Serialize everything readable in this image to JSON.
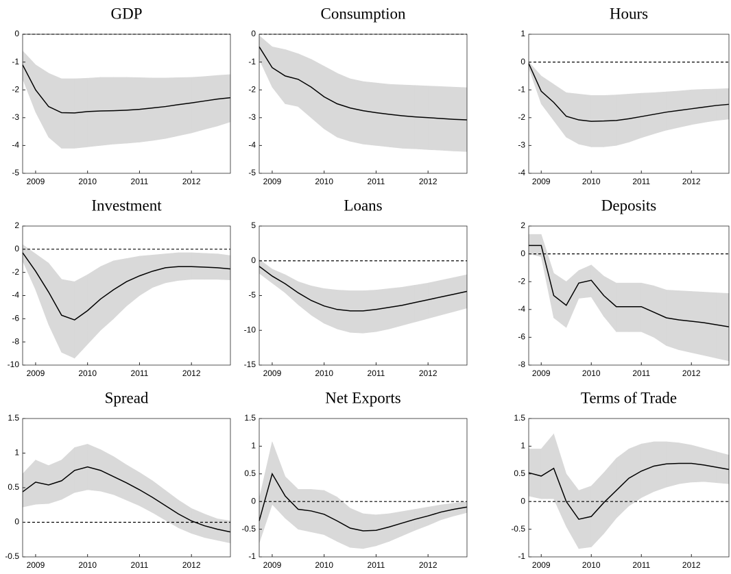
{
  "chart_data": [
    {
      "type": "line",
      "title": "GDP",
      "x": [
        2008.75,
        2009,
        2009.25,
        2009.5,
        2009.75,
        2010,
        2010.25,
        2010.5,
        2010.75,
        2011,
        2011.25,
        2011.5,
        2011.75,
        2012,
        2012.25,
        2012.5,
        2012.75
      ],
      "xlim": [
        2008.75,
        2012.75
      ],
      "xticks": [
        2009,
        2010,
        2011,
        2012
      ],
      "ylim": [
        -5,
        0
      ],
      "yticks": [
        -5,
        -4,
        -3,
        -2,
        -1,
        0
      ],
      "reference_line": 0,
      "color": "#000000",
      "band_color": "#d9d9d9",
      "values": [
        -1.1,
        -2.0,
        -2.6,
        -2.82,
        -2.83,
        -2.78,
        -2.76,
        -2.75,
        -2.73,
        -2.7,
        -2.65,
        -2.6,
        -2.53,
        -2.47,
        -2.4,
        -2.33,
        -2.28
      ],
      "upper": [
        -0.6,
        -1.1,
        -1.4,
        -1.6,
        -1.6,
        -1.58,
        -1.55,
        -1.55,
        -1.55,
        -1.56,
        -1.57,
        -1.57,
        -1.56,
        -1.55,
        -1.52,
        -1.48,
        -1.45
      ],
      "lower": [
        -1.6,
        -2.8,
        -3.7,
        -4.1,
        -4.1,
        -4.05,
        -4.0,
        -3.95,
        -3.92,
        -3.88,
        -3.82,
        -3.75,
        -3.65,
        -3.55,
        -3.42,
        -3.3,
        -3.15
      ]
    },
    {
      "type": "line",
      "title": "Consumption",
      "x": [
        2008.75,
        2009,
        2009.25,
        2009.5,
        2009.75,
        2010,
        2010.25,
        2010.5,
        2010.75,
        2011,
        2011.25,
        2011.5,
        2011.75,
        2012,
        2012.25,
        2012.5,
        2012.75
      ],
      "xlim": [
        2008.75,
        2012.75
      ],
      "xticks": [
        2009,
        2010,
        2011,
        2012
      ],
      "ylim": [
        -5,
        0
      ],
      "yticks": [
        -5,
        -4,
        -3,
        -2,
        -1,
        0
      ],
      "reference_line": 0,
      "color": "#000000",
      "band_color": "#d9d9d9",
      "values": [
        -0.45,
        -1.2,
        -1.5,
        -1.62,
        -1.9,
        -2.25,
        -2.5,
        -2.65,
        -2.75,
        -2.82,
        -2.88,
        -2.93,
        -2.97,
        -3.0,
        -3.03,
        -3.06,
        -3.08
      ],
      "upper": [
        -0.05,
        -0.45,
        -0.55,
        -0.7,
        -0.9,
        -1.15,
        -1.4,
        -1.6,
        -1.7,
        -1.75,
        -1.8,
        -1.82,
        -1.84,
        -1.86,
        -1.88,
        -1.9,
        -1.92
      ],
      "lower": [
        -0.9,
        -1.9,
        -2.5,
        -2.6,
        -3.0,
        -3.4,
        -3.7,
        -3.85,
        -3.95,
        -4.0,
        -4.05,
        -4.1,
        -4.12,
        -4.15,
        -4.17,
        -4.2,
        -4.22
      ]
    },
    {
      "type": "line",
      "title": "Hours",
      "x": [
        2008.75,
        2009,
        2009.25,
        2009.5,
        2009.75,
        2010,
        2010.25,
        2010.5,
        2010.75,
        2011,
        2011.25,
        2011.5,
        2011.75,
        2012,
        2012.25,
        2012.5,
        2012.75
      ],
      "xlim": [
        2008.75,
        2012.75
      ],
      "xticks": [
        2009,
        2010,
        2011,
        2012
      ],
      "ylim": [
        -4,
        1
      ],
      "yticks": [
        -4,
        -3,
        -2,
        -1,
        0,
        1
      ],
      "reference_line": 0,
      "color": "#000000",
      "band_color": "#d9d9d9",
      "values": [
        -0.05,
        -1.05,
        -1.45,
        -1.95,
        -2.08,
        -2.13,
        -2.12,
        -2.1,
        -2.04,
        -1.96,
        -1.88,
        -1.8,
        -1.74,
        -1.68,
        -1.62,
        -1.56,
        -1.52
      ],
      "upper": [
        0,
        -0.5,
        -0.8,
        -1.1,
        -1.15,
        -1.2,
        -1.2,
        -1.18,
        -1.15,
        -1.12,
        -1.1,
        -1.07,
        -1.04,
        -1.0,
        -0.98,
        -0.97,
        -0.95
      ],
      "lower": [
        -0.2,
        -1.5,
        -2.1,
        -2.7,
        -2.95,
        -3.05,
        -3.05,
        -3.0,
        -2.88,
        -2.72,
        -2.58,
        -2.45,
        -2.35,
        -2.25,
        -2.17,
        -2.1,
        -2.05
      ]
    },
    {
      "type": "line",
      "title": "Investment",
      "x": [
        2008.75,
        2009,
        2009.25,
        2009.5,
        2009.75,
        2010,
        2010.25,
        2010.5,
        2010.75,
        2011,
        2011.25,
        2011.5,
        2011.75,
        2012,
        2012.25,
        2012.5,
        2012.75
      ],
      "xlim": [
        2008.75,
        2012.75
      ],
      "xticks": [
        2009,
        2010,
        2011,
        2012
      ],
      "ylim": [
        -10,
        2
      ],
      "yticks": [
        -10,
        -8,
        -6,
        -4,
        -2,
        0,
        2
      ],
      "reference_line": 0,
      "color": "#000000",
      "band_color": "#d9d9d9",
      "values": [
        -0.3,
        -1.9,
        -3.7,
        -5.7,
        -6.1,
        -5.3,
        -4.3,
        -3.5,
        -2.8,
        -2.3,
        -1.9,
        -1.6,
        -1.5,
        -1.5,
        -1.55,
        -1.6,
        -1.7
      ],
      "upper": [
        0.4,
        -0.4,
        -1.2,
        -2.6,
        -2.8,
        -2.2,
        -1.5,
        -1.0,
        -0.8,
        -0.6,
        -0.5,
        -0.4,
        -0.3,
        -0.3,
        -0.35,
        -0.4,
        -0.55
      ],
      "lower": [
        -1.0,
        -3.5,
        -6.5,
        -8.9,
        -9.4,
        -8.2,
        -7.0,
        -6.0,
        -4.9,
        -4.0,
        -3.3,
        -2.9,
        -2.7,
        -2.6,
        -2.6,
        -2.6,
        -2.65
      ]
    },
    {
      "type": "line",
      "title": "Loans",
      "x": [
        2008.75,
        2009,
        2009.25,
        2009.5,
        2009.75,
        2010,
        2010.25,
        2010.5,
        2010.75,
        2011,
        2011.25,
        2011.5,
        2011.75,
        2012,
        2012.25,
        2012.5,
        2012.75
      ],
      "xlim": [
        2008.75,
        2012.75
      ],
      "xticks": [
        2009,
        2010,
        2011,
        2012
      ],
      "ylim": [
        -15,
        5
      ],
      "yticks": [
        -15,
        -10,
        -5,
        0,
        5
      ],
      "reference_line": 0,
      "color": "#000000",
      "band_color": "#d9d9d9",
      "values": [
        -0.8,
        -2.2,
        -3.3,
        -4.6,
        -5.7,
        -6.5,
        -7.0,
        -7.2,
        -7.2,
        -7.0,
        -6.7,
        -6.4,
        -6.0,
        -5.6,
        -5.2,
        -4.8,
        -4.4
      ],
      "upper": [
        0.2,
        -1.2,
        -2.0,
        -3.0,
        -3.6,
        -4.0,
        -4.2,
        -4.3,
        -4.3,
        -4.2,
        -4.0,
        -3.8,
        -3.5,
        -3.2,
        -2.8,
        -2.4,
        -2.0
      ],
      "lower": [
        -1.8,
        -3.2,
        -4.6,
        -6.3,
        -7.8,
        -9.0,
        -9.8,
        -10.3,
        -10.4,
        -10.2,
        -9.8,
        -9.3,
        -8.8,
        -8.3,
        -7.8,
        -7.3,
        -6.8
      ]
    },
    {
      "type": "line",
      "title": "Deposits",
      "x": [
        2008.75,
        2009,
        2009.25,
        2009.5,
        2009.75,
        2010,
        2010.25,
        2010.5,
        2010.75,
        2011,
        2011.25,
        2011.5,
        2011.75,
        2012,
        2012.25,
        2012.5,
        2012.75
      ],
      "xlim": [
        2008.75,
        2012.75
      ],
      "xticks": [
        2009,
        2010,
        2011,
        2012
      ],
      "ylim": [
        -8,
        2
      ],
      "yticks": [
        -8,
        -6,
        -4,
        -2,
        0,
        2
      ],
      "reference_line": 0,
      "color": "#000000",
      "band_color": "#d9d9d9",
      "values": [
        0.6,
        0.6,
        -3.0,
        -3.7,
        -2.1,
        -1.9,
        -3.0,
        -3.8,
        -3.8,
        -3.8,
        -4.2,
        -4.6,
        -4.75,
        -4.85,
        -4.95,
        -5.1,
        -5.25
      ],
      "upper": [
        1.4,
        1.4,
        -1.4,
        -2.0,
        -1.2,
        -0.8,
        -1.6,
        -2.1,
        -2.1,
        -2.1,
        -2.3,
        -2.6,
        -2.65,
        -2.7,
        -2.75,
        -2.8,
        -2.85
      ],
      "lower": [
        0,
        -0.2,
        -4.6,
        -5.3,
        -3.2,
        -3.1,
        -4.5,
        -5.6,
        -5.6,
        -5.6,
        -6.0,
        -6.6,
        -6.9,
        -7.1,
        -7.3,
        -7.5,
        -7.7
      ]
    },
    {
      "type": "line",
      "title": "Spread",
      "x": [
        2008.75,
        2009,
        2009.25,
        2009.5,
        2009.75,
        2010,
        2010.25,
        2010.5,
        2010.75,
        2011,
        2011.25,
        2011.5,
        2011.75,
        2012,
        2012.25,
        2012.5,
        2012.75
      ],
      "xlim": [
        2008.75,
        2012.75
      ],
      "xticks": [
        2009,
        2010,
        2011,
        2012
      ],
      "ylim": [
        -0.5,
        1.5
      ],
      "yticks": [
        -0.5,
        0,
        0.5,
        1,
        1.5
      ],
      "reference_line": 0,
      "color": "#000000",
      "band_color": "#d9d9d9",
      "values": [
        0.44,
        0.58,
        0.54,
        0.6,
        0.75,
        0.8,
        0.75,
        0.66,
        0.57,
        0.47,
        0.36,
        0.24,
        0.12,
        0.02,
        -0.05,
        -0.1,
        -0.14
      ],
      "upper": [
        0.7,
        0.9,
        0.82,
        0.9,
        1.08,
        1.13,
        1.05,
        0.95,
        0.83,
        0.72,
        0.6,
        0.46,
        0.32,
        0.2,
        0.12,
        0.05,
        0.02
      ],
      "lower": [
        0.22,
        0.26,
        0.27,
        0.33,
        0.43,
        0.47,
        0.45,
        0.4,
        0.32,
        0.24,
        0.14,
        0.03,
        -0.08,
        -0.16,
        -0.22,
        -0.26,
        -0.3
      ]
    },
    {
      "type": "line",
      "title": "Net Exports",
      "x": [
        2008.75,
        2009,
        2009.25,
        2009.5,
        2009.75,
        2010,
        2010.25,
        2010.5,
        2010.75,
        2011,
        2011.25,
        2011.5,
        2011.75,
        2012,
        2012.25,
        2012.5,
        2012.75
      ],
      "xlim": [
        2008.75,
        2012.75
      ],
      "xticks": [
        2009,
        2010,
        2011,
        2012
      ],
      "ylim": [
        -1,
        1.5
      ],
      "yticks": [
        -1,
        -0.5,
        0,
        0.5,
        1,
        1.5
      ],
      "reference_line": 0,
      "color": "#000000",
      "band_color": "#d9d9d9",
      "values": [
        -0.35,
        0.5,
        0.1,
        -0.14,
        -0.17,
        -0.23,
        -0.35,
        -0.48,
        -0.53,
        -0.52,
        -0.46,
        -0.39,
        -0.32,
        -0.26,
        -0.19,
        -0.14,
        -0.1
      ],
      "upper": [
        0.05,
        1.08,
        0.45,
        0.22,
        0.22,
        0.2,
        0.08,
        -0.12,
        -0.22,
        -0.24,
        -0.22,
        -0.18,
        -0.14,
        -0.1,
        -0.06,
        -0.03,
        0.0
      ],
      "lower": [
        -0.75,
        -0.05,
        -0.3,
        -0.5,
        -0.55,
        -0.6,
        -0.72,
        -0.83,
        -0.85,
        -0.8,
        -0.72,
        -0.62,
        -0.52,
        -0.43,
        -0.33,
        -0.26,
        -0.2
      ]
    },
    {
      "type": "line",
      "title": "Terms of Trade",
      "x": [
        2008.75,
        2009,
        2009.25,
        2009.5,
        2009.75,
        2010,
        2010.25,
        2010.5,
        2010.75,
        2011,
        2011.25,
        2011.5,
        2011.75,
        2012,
        2012.25,
        2012.5,
        2012.75
      ],
      "xlim": [
        2008.75,
        2012.75
      ],
      "xticks": [
        2009,
        2010,
        2011,
        2012
      ],
      "ylim": [
        -1,
        1.5
      ],
      "yticks": [
        -1,
        -0.5,
        0,
        0.5,
        1,
        1.5
      ],
      "reference_line": 0,
      "color": "#000000",
      "band_color": "#d9d9d9",
      "values": [
        0.52,
        0.46,
        0.6,
        0.0,
        -0.32,
        -0.27,
        -0.02,
        0.2,
        0.42,
        0.55,
        0.64,
        0.68,
        0.69,
        0.69,
        0.66,
        0.62,
        0.58
      ],
      "upper": [
        0.95,
        0.95,
        1.22,
        0.5,
        0.2,
        0.28,
        0.52,
        0.78,
        0.95,
        1.04,
        1.08,
        1.08,
        1.06,
        1.02,
        0.96,
        0.9,
        0.84
      ],
      "lower": [
        0.1,
        0.05,
        0.05,
        -0.45,
        -0.85,
        -0.82,
        -0.58,
        -0.3,
        -0.08,
        0.07,
        0.18,
        0.26,
        0.32,
        0.35,
        0.36,
        0.34,
        0.32
      ]
    }
  ]
}
